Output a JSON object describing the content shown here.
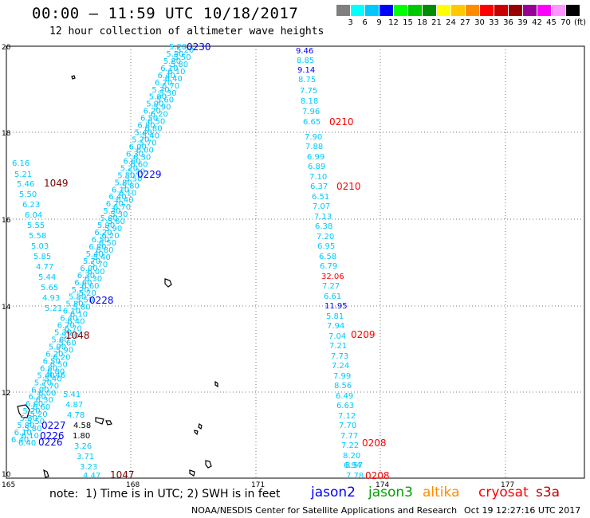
{
  "header": {
    "title": "00:00 – 11:59 UTC 10/18/2017",
    "subtitle": "12 hour collection of altimeter wave heights"
  },
  "colorbar": {
    "colors": [
      "#7f7f7f",
      "#00ffff",
      "#00c8ff",
      "#0000ff",
      "#00ff00",
      "#00c800",
      "#008c00",
      "#ffff00",
      "#ffc800",
      "#ff8c00",
      "#ff0000",
      "#c80000",
      "#960000",
      "#960096",
      "#ff00ff",
      "#ff96ff",
      "#000000"
    ],
    "labels": [
      "3",
      "6",
      "9",
      "12",
      "15",
      "18",
      "21",
      "24",
      "27",
      "30",
      "33",
      "36",
      "39",
      "42",
      "45",
      "70",
      "(ft)"
    ]
  },
  "axes": {
    "lat_labels": [
      "20",
      "18",
      "16",
      "14",
      "12",
      "10"
    ],
    "lon_labels": [
      "165",
      "168",
      "171",
      "174",
      "177"
    ]
  },
  "tracks": {
    "left_times": [
      "0230",
      "0229",
      "0228",
      "0227",
      "0226",
      "0226"
    ],
    "middle_values": [
      "9.46",
      "8.85",
      "9.14",
      "8.75",
      "7.75",
      "8.18",
      "7.96",
      "6.65",
      "7.90",
      "7.88",
      "6.99",
      "6.89",
      "7.10",
      "6.37",
      "6.51",
      "7.07",
      "7.13",
      "6.38",
      "7.20",
      "6.95",
      "6.58",
      "6.79",
      "32.06",
      "7.27",
      "6.61",
      "11.95",
      "5.81",
      "7.94",
      "7.04",
      "7.21",
      "7.73",
      "7.24",
      "7.99",
      "8.56",
      "6.49",
      "6.63",
      "7.12",
      "7.70",
      "7.77",
      "7.22",
      "8.20",
      "6.94",
      "8.57",
      "7.78"
    ],
    "middle_times": [
      "0210",
      "0210",
      "0209",
      "0208",
      "0208"
    ],
    "west_values": [
      "6.16",
      "5.21",
      "5.46",
      "5.50",
      "6.23",
      "6.04",
      "5.55",
      "5.58",
      "5.03",
      "5.85",
      "4.77",
      "5.44",
      "5.65",
      "4.93",
      "5.21",
      "4.46",
      "5.41",
      "4.87",
      "4.78",
      "4.58",
      "1.80",
      "3.26",
      "3.71",
      "3.23",
      "4.47"
    ],
    "west_times": [
      "1049",
      "1048",
      "1047"
    ]
  },
  "footer": {
    "note": "note:  1) Time is in UTC; 2) SWH is in feet",
    "legend": [
      {
        "label": "jason2",
        "color": "#0000ff"
      },
      {
        "label": "jason3",
        "color": "#00a000"
      },
      {
        "label": "altika",
        "color": "#ff8c00"
      },
      {
        "label": "cryosat",
        "color": "#ff0000"
      },
      {
        "label": "s3a",
        "color": "#c80000"
      }
    ],
    "credit": "NOAA/NESDIS Center for Satellite Applications and Research",
    "timestamp": "Oct 19 12:27:16 UTC 2017"
  }
}
